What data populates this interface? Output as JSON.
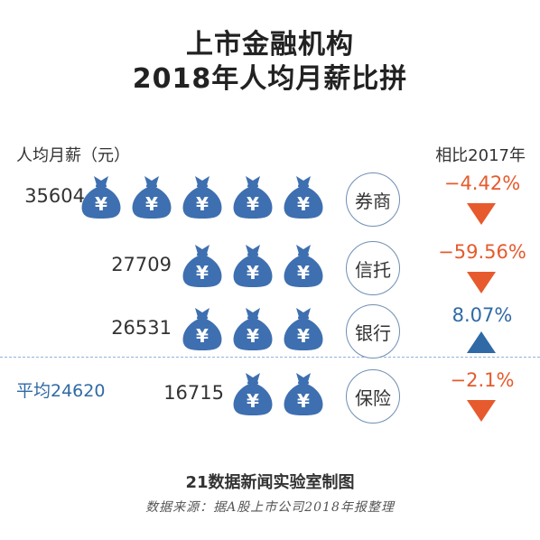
{
  "title": {
    "line1": "上市金融机构",
    "line2": "2018年人均月薪比拼"
  },
  "header": {
    "left_label": "人均月薪（元）",
    "right_label": "相比2017年"
  },
  "colors": {
    "bag": "#3e6fb0",
    "negative": "#e65a2d",
    "positive": "#2f6aa6",
    "circle_border": "#6e8fb4"
  },
  "icon": "money-bag-yuan-icon",
  "chart_data": {
    "type": "pictogram",
    "categories": [
      "券商",
      "信托",
      "银行",
      "保险"
    ],
    "values": [
      35604,
      27709,
      26531,
      16715
    ],
    "icons_per_row": [
      5,
      3,
      3,
      2
    ],
    "changes": [
      "−4.42%",
      "−59.56%",
      "8.07%",
      "−2.1%"
    ],
    "change_direction": [
      "down",
      "down",
      "up",
      "down"
    ],
    "average": {
      "label": "平均24620",
      "value": 24620
    }
  },
  "rows": [
    {
      "value": "35604",
      "category": "券商",
      "change": "−4.42%"
    },
    {
      "value": "27709",
      "category": "信托",
      "change": "−59.56%"
    },
    {
      "value": "26531",
      "category": "银行",
      "change": "8.07%"
    },
    {
      "value": "16715",
      "category": "保险",
      "change": "−2.1%"
    }
  ],
  "footer": {
    "credit": "21数据新闻实验室制图",
    "source": "数据来源：据A股上市公司2018年报整理"
  }
}
